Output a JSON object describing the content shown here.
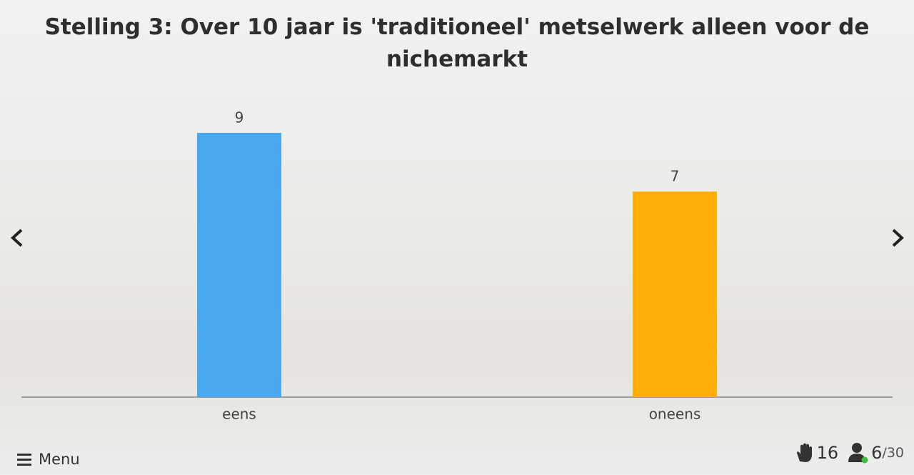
{
  "chart_data": {
    "type": "bar",
    "title": "Stelling 3: Over 10 jaar is 'traditioneel' metselwerk alleen voor de nichemarkt",
    "categories": [
      "eens",
      "oneens"
    ],
    "values": [
      9,
      7
    ],
    "colors": [
      "#4aa8ef",
      "#ffae0a"
    ]
  },
  "footer": {
    "menu": "Menu",
    "hands": 16,
    "participants": 6,
    "total": "/30"
  }
}
